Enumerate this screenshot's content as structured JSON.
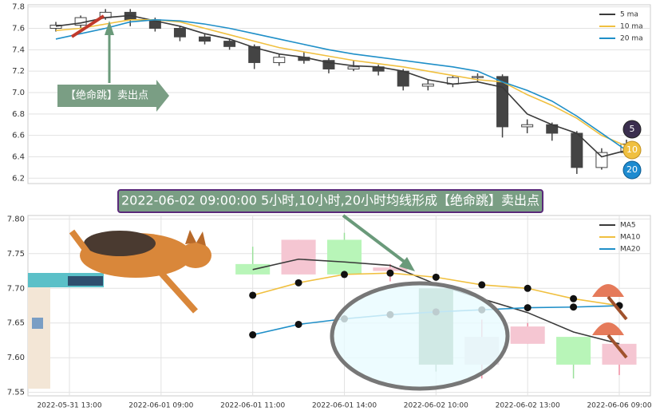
{
  "chart_data": [
    {
      "type": "candlestick",
      "ylim": [
        6.15,
        7.82
      ],
      "yticks": [
        6.2,
        6.4,
        6.6,
        6.8,
        {
          "value": 7,
          "label": "7.0"
        },
        7.2,
        7.4,
        7.6,
        7.8
      ],
      "grid": true,
      "legend": "upper right",
      "candles": [
        {
          "open": 7.6,
          "high": 7.66,
          "low": 7.57,
          "close": 7.63
        },
        {
          "open": 7.63,
          "high": 7.72,
          "low": 7.6,
          "close": 7.7
        },
        {
          "open": 7.7,
          "high": 7.78,
          "low": 7.68,
          "close": 7.75
        },
        {
          "open": 7.75,
          "high": 7.78,
          "low": 7.62,
          "close": 7.68
        },
        {
          "open": 7.68,
          "high": 7.7,
          "low": 7.57,
          "close": 7.6
        },
        {
          "open": 7.6,
          "high": 7.62,
          "low": 7.48,
          "close": 7.52
        },
        {
          "open": 7.52,
          "high": 7.55,
          "low": 7.45,
          "close": 7.48
        },
        {
          "open": 7.48,
          "high": 7.5,
          "low": 7.4,
          "close": 7.43
        },
        {
          "open": 7.43,
          "high": 7.45,
          "low": 7.22,
          "close": 7.28
        },
        {
          "open": 7.28,
          "high": 7.36,
          "low": 7.25,
          "close": 7.33
        },
        {
          "open": 7.33,
          "high": 7.38,
          "low": 7.27,
          "close": 7.3
        },
        {
          "open": 7.3,
          "high": 7.32,
          "low": 7.18,
          "close": 7.22
        },
        {
          "open": 7.22,
          "high": 7.3,
          "low": 7.2,
          "close": 7.24
        },
        {
          "open": 7.24,
          "high": 7.26,
          "low": 7.16,
          "close": 7.2
        },
        {
          "open": 7.2,
          "high": 7.22,
          "low": 7.02,
          "close": 7.06
        },
        {
          "open": 7.06,
          "high": 7.12,
          "low": 7.02,
          "close": 7.08
        },
        {
          "open": 7.08,
          "high": 7.16,
          "low": 7.05,
          "close": 7.14
        },
        {
          "open": 7.14,
          "high": 7.18,
          "low": 7.1,
          "close": 7.15
        },
        {
          "open": 7.15,
          "high": 7.17,
          "low": 6.58,
          "close": 6.68
        },
        {
          "open": 6.68,
          "high": 6.75,
          "low": 6.62,
          "close": 6.7
        },
        {
          "open": 6.7,
          "high": 6.72,
          "low": 6.55,
          "close": 6.62
        },
        {
          "open": 6.62,
          "high": 6.64,
          "low": 6.24,
          "close": 6.3
        },
        {
          "open": 6.3,
          "high": 6.48,
          "low": 6.28,
          "close": 6.44
        },
        {
          "open": 6.44,
          "high": 6.56,
          "low": 6.4,
          "close": 6.52
        }
      ],
      "series": [
        {
          "name": "5 ma",
          "color": "#3a3a3a",
          "values": [
            7.62,
            7.65,
            7.7,
            7.72,
            7.67,
            7.62,
            7.55,
            7.5,
            7.42,
            7.36,
            7.33,
            7.28,
            7.25,
            7.24,
            7.2,
            7.12,
            7.08,
            7.1,
            7.05,
            6.8,
            6.7,
            6.62,
            6.4,
            6.46
          ]
        },
        {
          "name": "10 ma",
          "color": "#f0c040",
          "values": [
            7.58,
            7.6,
            7.64,
            7.68,
            7.68,
            7.66,
            7.6,
            7.54,
            7.48,
            7.42,
            7.38,
            7.34,
            7.3,
            7.27,
            7.24,
            7.2,
            7.16,
            7.12,
            7.1,
            6.98,
            6.88,
            6.76,
            6.6,
            6.5
          ]
        },
        {
          "name": "20 ma",
          "color": "#1f8fc8",
          "values": [
            7.5,
            7.55,
            7.6,
            7.66,
            7.68,
            7.67,
            7.64,
            7.6,
            7.55,
            7.5,
            7.45,
            7.4,
            7.36,
            7.33,
            7.3,
            7.27,
            7.24,
            7.2,
            7.1,
            7.02,
            6.92,
            6.78,
            6.62,
            6.46
          ]
        }
      ],
      "annotation": "【绝命跳】卖出点",
      "badges": [
        "5",
        "10",
        "20"
      ]
    },
    {
      "type": "candlestick",
      "ylim": [
        7.545,
        7.805
      ],
      "yticks": [
        {
          "value": 7.55,
          "label": "7.55"
        },
        {
          "value": 7.6,
          "label": "7.60"
        },
        {
          "value": 7.65,
          "label": "7.65"
        },
        {
          "value": 7.7,
          "label": "7.70"
        },
        {
          "value": 7.75,
          "label": "7.75"
        },
        {
          "value": 7.8,
          "label": "7.80"
        }
      ],
      "grid": true,
      "legend": "upper right",
      "categories": [
        "2022-05-31 13:00",
        null,
        "2022-06-01 09:00",
        null,
        "2022-06-01 11:00",
        null,
        "2022-06-01 14:00",
        null,
        "2022-06-02 10:00",
        null,
        "2022-06-02 13:00",
        null,
        "2022-06-06 09:00"
      ],
      "candles": [
        null,
        null,
        null,
        null,
        {
          "open": 7.735,
          "high": 7.76,
          "low": 7.72,
          "close": 7.72,
          "color": "#b8f5b8"
        },
        {
          "open": 7.72,
          "high": 7.77,
          "low": 7.72,
          "close": 7.77,
          "color": "#f5c6d2"
        },
        {
          "open": 7.77,
          "high": 7.78,
          "low": 7.72,
          "close": 7.72,
          "color": "#b8f5b8"
        },
        {
          "open": 7.725,
          "high": 7.735,
          "low": 7.71,
          "close": 7.73,
          "color": "#f5c6d2"
        },
        {
          "open": 7.7,
          "high": 7.7,
          "low": 7.58,
          "close": 7.59,
          "color": "#6e9e7e"
        },
        {
          "open": 7.59,
          "high": 7.655,
          "low": 7.57,
          "close": 7.63,
          "color": "#e6dde2"
        },
        {
          "open": 7.62,
          "high": 7.65,
          "low": 7.62,
          "close": 7.645,
          "color": "#f5c6d2"
        },
        {
          "open": 7.63,
          "high": 7.63,
          "low": 7.57,
          "close": 7.59,
          "color": "#b8f5b8"
        },
        {
          "open": 7.59,
          "high": 7.62,
          "low": 7.575,
          "close": 7.62,
          "color": "#f5c6d2"
        }
      ],
      "series": [
        {
          "name": "MA5",
          "color": "#3a3a3a",
          "values": [
            null,
            null,
            null,
            null,
            7.727,
            7.742,
            7.738,
            7.733,
            7.706,
            7.685,
            7.665,
            7.637,
            7.62
          ]
        },
        {
          "name": "MA10",
          "color": "#f0c040",
          "markers": true,
          "values": [
            null,
            null,
            null,
            null,
            7.69,
            7.708,
            7.72,
            7.722,
            7.716,
            7.705,
            7.7,
            7.685,
            7.675
          ]
        },
        {
          "name": "MA20",
          "color": "#1f8fc8",
          "markers": true,
          "values": [
            null,
            null,
            null,
            null,
            7.633,
            7.648,
            7.656,
            7.662,
            7.666,
            7.669,
            7.672,
            7.673,
            7.675
          ]
        }
      ],
      "annotation": "2022-06-02 09:00:00 5小时,10小时,20小时均线形成【绝命跳】卖出点"
    }
  ]
}
